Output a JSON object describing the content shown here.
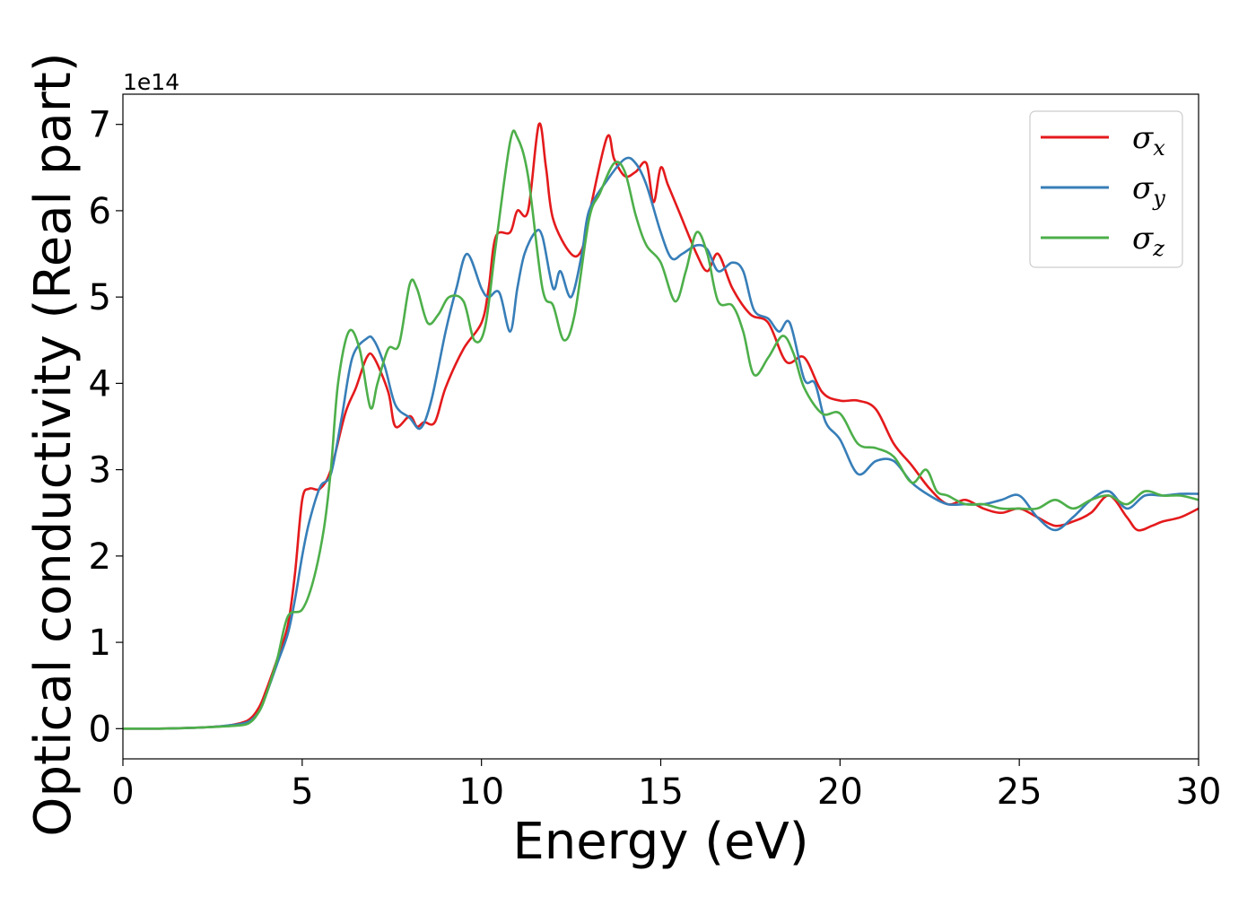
{
  "chart_data": {
    "type": "line",
    "xlabel": "Energy (eV)",
    "ylabel": "Optical conductivity (Real part)",
    "y_offset_label": "1e14",
    "xlim": [
      0,
      30
    ],
    "ylim": [
      -0.35,
      7.35
    ],
    "x_ticks": [
      0,
      5,
      10,
      15,
      20,
      25,
      30
    ],
    "y_ticks": [
      0,
      1,
      2,
      3,
      4,
      5,
      6,
      7
    ],
    "x_tick_labels": [
      "0",
      "5",
      "10",
      "15",
      "20",
      "25",
      "30"
    ],
    "y_tick_labels": [
      "0",
      "1",
      "2",
      "3",
      "4",
      "5",
      "6",
      "7"
    ],
    "grid": false,
    "legend_position": "top-right",
    "series": [
      {
        "name": "σx",
        "legend_base": "σ",
        "legend_sub": "x",
        "color": "#e41a1c",
        "points": [
          [
            0,
            0
          ],
          [
            1,
            0
          ],
          [
            2,
            0.01
          ],
          [
            2.5,
            0.02
          ],
          [
            3,
            0.04
          ],
          [
            3.5,
            0.1
          ],
          [
            3.8,
            0.25
          ],
          [
            4,
            0.45
          ],
          [
            4.3,
            0.8
          ],
          [
            4.6,
            1.2
          ],
          [
            4.8,
            1.8
          ],
          [
            5,
            2.65
          ],
          [
            5.2,
            2.78
          ],
          [
            5.5,
            2.78
          ],
          [
            5.8,
            3.0
          ],
          [
            6.2,
            3.65
          ],
          [
            6.5,
            3.95
          ],
          [
            6.8,
            4.3
          ],
          [
            7,
            4.3
          ],
          [
            7.4,
            3.9
          ],
          [
            7.6,
            3.5
          ],
          [
            8,
            3.62
          ],
          [
            8.2,
            3.5
          ],
          [
            8.4,
            3.55
          ],
          [
            8.7,
            3.55
          ],
          [
            9,
            3.95
          ],
          [
            9.5,
            4.4
          ],
          [
            10,
            4.7
          ],
          [
            10.2,
            5.1
          ],
          [
            10.4,
            5.7
          ],
          [
            10.8,
            5.75
          ],
          [
            11,
            6.0
          ],
          [
            11.3,
            6.0
          ],
          [
            11.6,
            7.0
          ],
          [
            11.8,
            6.5
          ],
          [
            12,
            5.9
          ],
          [
            12.5,
            5.5
          ],
          [
            12.8,
            5.55
          ],
          [
            13,
            5.95
          ],
          [
            13.5,
            6.85
          ],
          [
            13.7,
            6.6
          ],
          [
            14,
            6.4
          ],
          [
            14.3,
            6.45
          ],
          [
            14.6,
            6.55
          ],
          [
            14.8,
            6.1
          ],
          [
            15,
            6.5
          ],
          [
            15.2,
            6.3
          ],
          [
            15.5,
            6.0
          ],
          [
            16,
            5.5
          ],
          [
            16.3,
            5.3
          ],
          [
            16.6,
            5.5
          ],
          [
            17,
            5.1
          ],
          [
            17.5,
            4.8
          ],
          [
            18,
            4.7
          ],
          [
            18.5,
            4.25
          ],
          [
            19,
            4.3
          ],
          [
            19.5,
            3.9
          ],
          [
            20,
            3.8
          ],
          [
            20.5,
            3.8
          ],
          [
            21,
            3.7
          ],
          [
            21.5,
            3.3
          ],
          [
            22,
            3.05
          ],
          [
            22.5,
            2.78
          ],
          [
            23,
            2.6
          ],
          [
            23.5,
            2.65
          ],
          [
            24,
            2.55
          ],
          [
            24.5,
            2.5
          ],
          [
            25,
            2.55
          ],
          [
            25.5,
            2.45
          ],
          [
            26,
            2.35
          ],
          [
            26.5,
            2.4
          ],
          [
            27,
            2.5
          ],
          [
            27.5,
            2.7
          ],
          [
            28,
            2.45
          ],
          [
            28.3,
            2.3
          ],
          [
            28.7,
            2.35
          ],
          [
            29,
            2.4
          ],
          [
            29.5,
            2.45
          ],
          [
            30,
            2.55
          ]
        ]
      },
      {
        "name": "σy",
        "legend_base": "σ",
        "legend_sub": "y",
        "color": "#377eb8",
        "points": [
          [
            0,
            0
          ],
          [
            1,
            0
          ],
          [
            2,
            0.01
          ],
          [
            2.5,
            0.02
          ],
          [
            3,
            0.04
          ],
          [
            3.5,
            0.08
          ],
          [
            3.8,
            0.2
          ],
          [
            4,
            0.4
          ],
          [
            4.3,
            0.75
          ],
          [
            4.6,
            1.1
          ],
          [
            4.8,
            1.5
          ],
          [
            5,
            2.0
          ],
          [
            5.2,
            2.4
          ],
          [
            5.5,
            2.8
          ],
          [
            5.8,
            2.95
          ],
          [
            6.1,
            3.6
          ],
          [
            6.4,
            4.3
          ],
          [
            6.8,
            4.52
          ],
          [
            7,
            4.5
          ],
          [
            7.3,
            4.2
          ],
          [
            7.6,
            3.75
          ],
          [
            8,
            3.6
          ],
          [
            8.3,
            3.48
          ],
          [
            8.6,
            3.8
          ],
          [
            9,
            4.6
          ],
          [
            9.3,
            5.1
          ],
          [
            9.6,
            5.5
          ],
          [
            10,
            5.1
          ],
          [
            10.2,
            5.0
          ],
          [
            10.5,
            5.05
          ],
          [
            10.8,
            4.6
          ],
          [
            11,
            5.1
          ],
          [
            11.2,
            5.5
          ],
          [
            11.5,
            5.75
          ],
          [
            11.7,
            5.7
          ],
          [
            12,
            5.1
          ],
          [
            12.2,
            5.3
          ],
          [
            12.5,
            5.0
          ],
          [
            12.8,
            5.5
          ],
          [
            13,
            6.0
          ],
          [
            13.5,
            6.35
          ],
          [
            14,
            6.6
          ],
          [
            14.3,
            6.55
          ],
          [
            14.6,
            6.3
          ],
          [
            15,
            5.75
          ],
          [
            15.3,
            5.45
          ],
          [
            15.6,
            5.5
          ],
          [
            16,
            5.6
          ],
          [
            16.3,
            5.55
          ],
          [
            16.6,
            5.3
          ],
          [
            17,
            5.4
          ],
          [
            17.3,
            5.3
          ],
          [
            17.6,
            4.85
          ],
          [
            18,
            4.75
          ],
          [
            18.3,
            4.6
          ],
          [
            18.6,
            4.7
          ],
          [
            19,
            4.05
          ],
          [
            19.3,
            4.0
          ],
          [
            19.6,
            3.55
          ],
          [
            20,
            3.35
          ],
          [
            20.5,
            2.95
          ],
          [
            21,
            3.1
          ],
          [
            21.5,
            3.1
          ],
          [
            22,
            2.85
          ],
          [
            22.5,
            2.7
          ],
          [
            23,
            2.6
          ],
          [
            23.5,
            2.6
          ],
          [
            24,
            2.6
          ],
          [
            24.5,
            2.65
          ],
          [
            25,
            2.7
          ],
          [
            25.5,
            2.45
          ],
          [
            26,
            2.3
          ],
          [
            26.5,
            2.45
          ],
          [
            27,
            2.65
          ],
          [
            27.5,
            2.75
          ],
          [
            28,
            2.55
          ],
          [
            28.5,
            2.7
          ],
          [
            29,
            2.7
          ],
          [
            29.5,
            2.72
          ],
          [
            30,
            2.72
          ]
        ]
      },
      {
        "name": "σz",
        "legend_base": "σ",
        "legend_sub": "z",
        "color": "#4daf4a",
        "points": [
          [
            0,
            0
          ],
          [
            1,
            0
          ],
          [
            2,
            0.01
          ],
          [
            2.5,
            0.02
          ],
          [
            3,
            0.03
          ],
          [
            3.5,
            0.06
          ],
          [
            3.8,
            0.2
          ],
          [
            4,
            0.4
          ],
          [
            4.3,
            0.8
          ],
          [
            4.6,
            1.3
          ],
          [
            5,
            1.38
          ],
          [
            5.3,
            1.7
          ],
          [
            5.6,
            2.3
          ],
          [
            5.8,
            3.0
          ],
          [
            6,
            4.0
          ],
          [
            6.3,
            4.6
          ],
          [
            6.6,
            4.4
          ],
          [
            6.9,
            3.72
          ],
          [
            7.1,
            4.0
          ],
          [
            7.4,
            4.4
          ],
          [
            7.7,
            4.45
          ],
          [
            8,
            5.15
          ],
          [
            8.2,
            5.1
          ],
          [
            8.5,
            4.7
          ],
          [
            8.8,
            4.8
          ],
          [
            9.1,
            5.0
          ],
          [
            9.5,
            4.95
          ],
          [
            9.8,
            4.5
          ],
          [
            10.1,
            4.65
          ],
          [
            10.4,
            5.6
          ],
          [
            10.8,
            6.8
          ],
          [
            11,
            6.85
          ],
          [
            11.3,
            6.4
          ],
          [
            11.7,
            5.1
          ],
          [
            12,
            4.9
          ],
          [
            12.3,
            4.5
          ],
          [
            12.6,
            4.8
          ],
          [
            13,
            5.9
          ],
          [
            13.3,
            6.2
          ],
          [
            13.7,
            6.55
          ],
          [
            14,
            6.45
          ],
          [
            14.3,
            5.95
          ],
          [
            14.6,
            5.6
          ],
          [
            15,
            5.4
          ],
          [
            15.4,
            4.95
          ],
          [
            15.7,
            5.3
          ],
          [
            16,
            5.75
          ],
          [
            16.3,
            5.5
          ],
          [
            16.6,
            4.95
          ],
          [
            17,
            4.9
          ],
          [
            17.3,
            4.6
          ],
          [
            17.6,
            4.1
          ],
          [
            18,
            4.3
          ],
          [
            18.4,
            4.55
          ],
          [
            18.7,
            4.35
          ],
          [
            19,
            3.95
          ],
          [
            19.5,
            3.65
          ],
          [
            20,
            3.65
          ],
          [
            20.5,
            3.3
          ],
          [
            21,
            3.25
          ],
          [
            21.5,
            3.15
          ],
          [
            22,
            2.85
          ],
          [
            22.4,
            3.0
          ],
          [
            22.7,
            2.75
          ],
          [
            23,
            2.7
          ],
          [
            23.5,
            2.6
          ],
          [
            24,
            2.6
          ],
          [
            24.5,
            2.55
          ],
          [
            25,
            2.55
          ],
          [
            25.5,
            2.55
          ],
          [
            26,
            2.65
          ],
          [
            26.5,
            2.55
          ],
          [
            27,
            2.65
          ],
          [
            27.5,
            2.7
          ],
          [
            28,
            2.6
          ],
          [
            28.5,
            2.75
          ],
          [
            29,
            2.7
          ],
          [
            29.5,
            2.7
          ],
          [
            30,
            2.65
          ]
        ]
      }
    ]
  }
}
